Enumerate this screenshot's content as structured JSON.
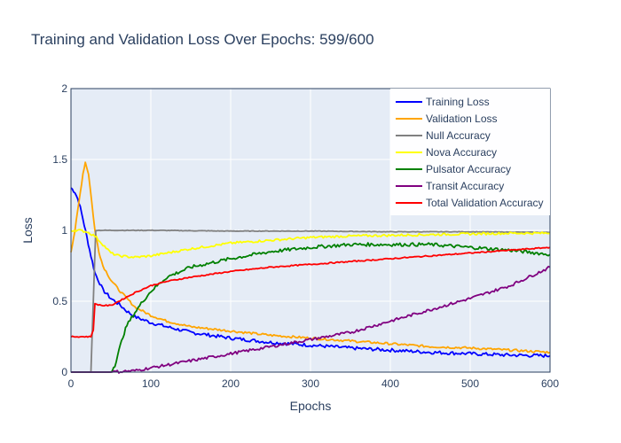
{
  "chart_data": {
    "type": "line",
    "title": "Training and Validation Loss Over Epochs: 599/600",
    "xlabel": "Epochs",
    "ylabel": "Loss",
    "xlim": [
      0,
      600
    ],
    "ylim": [
      0,
      2
    ],
    "x_ticks": [
      0,
      100,
      200,
      300,
      400,
      500,
      600
    ],
    "y_ticks": [
      0,
      0.5,
      1,
      1.5,
      2
    ],
    "y_tick_labels": [
      "0",
      "0.5",
      "1",
      "1.5",
      "2"
    ],
    "grid": true,
    "legend_position": "top-right",
    "series": [
      {
        "name": "Training Loss",
        "color": "#0000ff",
        "points": [
          [
            0,
            1.3
          ],
          [
            5,
            1.27
          ],
          [
            10,
            1.2
          ],
          [
            15,
            1.08
          ],
          [
            20,
            0.95
          ],
          [
            25,
            0.82
          ],
          [
            30,
            0.7
          ],
          [
            40,
            0.58
          ],
          [
            50,
            0.52
          ],
          [
            60,
            0.48
          ],
          [
            70,
            0.43
          ],
          [
            80,
            0.39
          ],
          [
            100,
            0.35
          ],
          [
            120,
            0.32
          ],
          [
            150,
            0.28
          ],
          [
            200,
            0.24
          ],
          [
            250,
            0.21
          ],
          [
            300,
            0.19
          ],
          [
            350,
            0.17
          ],
          [
            400,
            0.155
          ],
          [
            450,
            0.14
          ],
          [
            500,
            0.13
          ],
          [
            550,
            0.12
          ],
          [
            600,
            0.115
          ]
        ]
      },
      {
        "name": "Validation Loss",
        "color": "#ffa500",
        "points": [
          [
            0,
            0.85
          ],
          [
            5,
            1.0
          ],
          [
            10,
            1.2
          ],
          [
            15,
            1.4
          ],
          [
            18,
            1.48
          ],
          [
            22,
            1.4
          ],
          [
            26,
            1.2
          ],
          [
            30,
            1.0
          ],
          [
            35,
            0.85
          ],
          [
            40,
            0.75
          ],
          [
            50,
            0.65
          ],
          [
            60,
            0.58
          ],
          [
            70,
            0.52
          ],
          [
            80,
            0.46
          ],
          [
            100,
            0.4
          ],
          [
            120,
            0.36
          ],
          [
            150,
            0.32
          ],
          [
            200,
            0.29
          ],
          [
            250,
            0.26
          ],
          [
            300,
            0.24
          ],
          [
            350,
            0.22
          ],
          [
            400,
            0.2
          ],
          [
            450,
            0.18
          ],
          [
            500,
            0.17
          ],
          [
            550,
            0.155
          ],
          [
            600,
            0.14
          ]
        ]
      },
      {
        "name": "Null Accuracy",
        "color": "#808080",
        "points": [
          [
            0,
            0
          ],
          [
            25,
            0
          ],
          [
            28,
            0.5
          ],
          [
            31,
            1.0
          ],
          [
            100,
            1.0
          ],
          [
            200,
            0.995
          ],
          [
            300,
            0.995
          ],
          [
            400,
            0.99
          ],
          [
            500,
            0.99
          ],
          [
            600,
            0.985
          ]
        ]
      },
      {
        "name": "Nova Accuracy",
        "color": "#ffff00",
        "points": [
          [
            0,
            1.0
          ],
          [
            10,
            1.0
          ],
          [
            20,
            0.99
          ],
          [
            30,
            0.96
          ],
          [
            40,
            0.9
          ],
          [
            50,
            0.84
          ],
          [
            60,
            0.82
          ],
          [
            80,
            0.81
          ],
          [
            100,
            0.82
          ],
          [
            150,
            0.87
          ],
          [
            200,
            0.91
          ],
          [
            250,
            0.93
          ],
          [
            300,
            0.95
          ],
          [
            350,
            0.96
          ],
          [
            400,
            0.965
          ],
          [
            450,
            0.97
          ],
          [
            500,
            0.975
          ],
          [
            550,
            0.98
          ],
          [
            600,
            0.98
          ]
        ]
      },
      {
        "name": "Pulsator Accuracy",
        "color": "#008000",
        "points": [
          [
            0,
            0
          ],
          [
            50,
            0
          ],
          [
            55,
            0.05
          ],
          [
            60,
            0.15
          ],
          [
            65,
            0.25
          ],
          [
            70,
            0.33
          ],
          [
            80,
            0.42
          ],
          [
            90,
            0.5
          ],
          [
            100,
            0.57
          ],
          [
            120,
            0.67
          ],
          [
            150,
            0.74
          ],
          [
            200,
            0.8
          ],
          [
            250,
            0.85
          ],
          [
            300,
            0.88
          ],
          [
            350,
            0.9
          ],
          [
            400,
            0.9
          ],
          [
            450,
            0.9
          ],
          [
            500,
            0.88
          ],
          [
            550,
            0.86
          ],
          [
            600,
            0.83
          ]
        ]
      },
      {
        "name": "Transit Accuracy",
        "color": "#800080",
        "points": [
          [
            0,
            0
          ],
          [
            50,
            0
          ],
          [
            80,
            0.01
          ],
          [
            100,
            0.03
          ],
          [
            150,
            0.08
          ],
          [
            200,
            0.13
          ],
          [
            250,
            0.18
          ],
          [
            300,
            0.23
          ],
          [
            350,
            0.28
          ],
          [
            400,
            0.36
          ],
          [
            450,
            0.44
          ],
          [
            500,
            0.52
          ],
          [
            550,
            0.61
          ],
          [
            600,
            0.74
          ]
        ]
      },
      {
        "name": "Total Validation Accuracy",
        "color": "#ff0000",
        "points": [
          [
            0,
            0.25
          ],
          [
            25,
            0.25
          ],
          [
            28,
            0.3
          ],
          [
            30,
            0.48
          ],
          [
            40,
            0.47
          ],
          [
            50,
            0.47
          ],
          [
            60,
            0.5
          ],
          [
            80,
            0.56
          ],
          [
            100,
            0.61
          ],
          [
            120,
            0.64
          ],
          [
            150,
            0.67
          ],
          [
            200,
            0.71
          ],
          [
            250,
            0.74
          ],
          [
            300,
            0.76
          ],
          [
            350,
            0.78
          ],
          [
            400,
            0.8
          ],
          [
            450,
            0.82
          ],
          [
            500,
            0.84
          ],
          [
            550,
            0.86
          ],
          [
            600,
            0.88
          ]
        ]
      }
    ]
  }
}
